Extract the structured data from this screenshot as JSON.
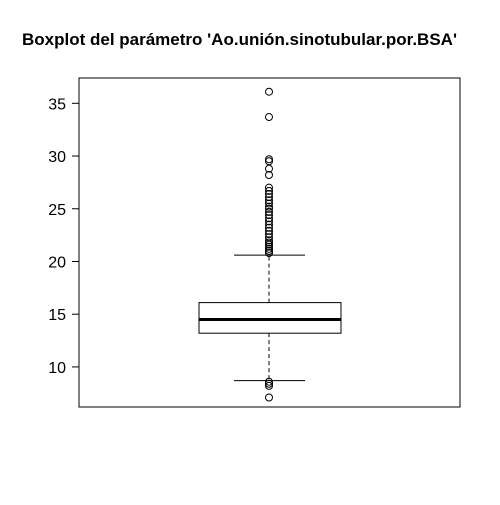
{
  "chart_data": {
    "type": "boxplot",
    "title": "Boxplot del parámetro 'Ao.unión.sinotubular.por.BSA'",
    "xlabel": "",
    "ylabel": "",
    "ylim": [
      6.2,
      37.4
    ],
    "yticks": [
      10,
      15,
      20,
      25,
      30,
      35
    ],
    "box": {
      "q1": 13.2,
      "median": 14.5,
      "q3": 16.1,
      "whisker_low": 8.7,
      "whisker_high": 20.6
    },
    "outliers": [
      36.1,
      33.7,
      29.7,
      29.5,
      28.8,
      28.2,
      27.0,
      26.7,
      26.4,
      26.1,
      25.8,
      25.5,
      25.2,
      25.0,
      24.7,
      24.4,
      24.1,
      23.8,
      23.5,
      23.2,
      22.9,
      22.6,
      22.3,
      22.0,
      21.8,
      21.6,
      21.4,
      21.2,
      21.0,
      20.8,
      8.6,
      8.4,
      8.2,
      7.1
    ]
  }
}
